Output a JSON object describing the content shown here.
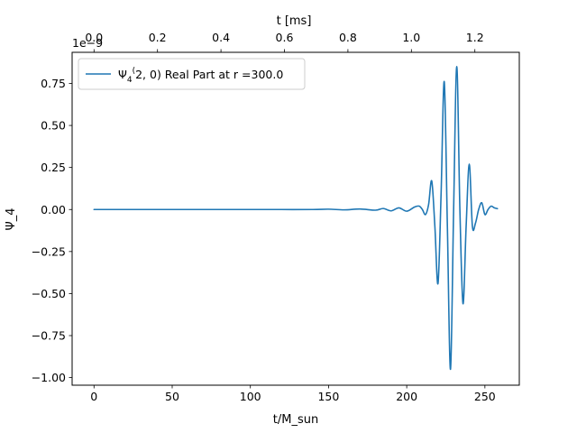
{
  "chart_data": {
    "type": "line",
    "title": "",
    "xlabel": "t/M_sun",
    "ylabel": "Ψ_4",
    "secondary_xlabel": "t [ms]",
    "y_offset_text": "1e−9",
    "y_multiplier": 1e-09,
    "xlim": [
      -14,
      272
    ],
    "ylim": [
      -1.045,
      0.935
    ],
    "secondary_xlim": [
      -0.069,
      1.34
    ],
    "x_ticks": [
      0,
      50,
      100,
      150,
      200,
      250
    ],
    "x_tick_labels": [
      "0",
      "50",
      "100",
      "150",
      "200",
      "250"
    ],
    "y_ticks": [
      0.75,
      0.5,
      0.25,
      0.0,
      -0.25,
      -0.5,
      -0.75,
      -1.0
    ],
    "y_tick_labels": [
      "0.75",
      "0.50",
      "0.25",
      "0.00",
      "−0.25",
      "−0.50",
      "−0.75",
      "−1.00"
    ],
    "secondary_x_ticks": [
      0.0,
      0.2,
      0.4,
      0.6,
      0.8,
      1.0,
      1.2
    ],
    "secondary_x_tick_labels": [
      "0.0",
      "0.2",
      "0.4",
      "0.6",
      "0.8",
      "1.0",
      "1.2"
    ],
    "legend": {
      "position": "upper-left",
      "label_main": "Ψ",
      "label_sub": "4",
      "label_sup": "(",
      "label_rest": "2, 0) Real Part at r =300.0"
    },
    "grid": false,
    "series": [
      {
        "name": "Ψ4(2,0) Real Part at r =300.0",
        "color": "#1f77b4",
        "x": [
          0,
          10,
          20,
          40,
          60,
          80,
          100,
          120,
          140,
          150,
          160,
          170,
          180,
          185,
          190,
          195,
          200,
          205,
          208,
          210,
          212,
          214,
          216,
          218,
          220,
          222,
          224,
          226,
          228,
          230,
          232,
          234,
          236,
          238,
          240,
          242,
          244,
          246,
          248,
          250,
          252,
          254,
          256,
          258
        ],
        "y": [
          0.0,
          0.0,
          0.0,
          0.0,
          0.0,
          0.0,
          0.0,
          0.0,
          0.0,
          0.002,
          -0.002,
          0.003,
          -0.004,
          0.006,
          -0.008,
          0.01,
          -0.01,
          0.015,
          0.02,
          0.0,
          -0.03,
          0.03,
          0.17,
          -0.1,
          -0.44,
          0.1,
          0.76,
          -0.1,
          -0.95,
          0.0,
          0.85,
          0.0,
          -0.56,
          -0.1,
          0.27,
          -0.1,
          -0.08,
          0.0,
          0.04,
          -0.03,
          0.0,
          0.02,
          0.01,
          0.005
        ]
      }
    ]
  }
}
